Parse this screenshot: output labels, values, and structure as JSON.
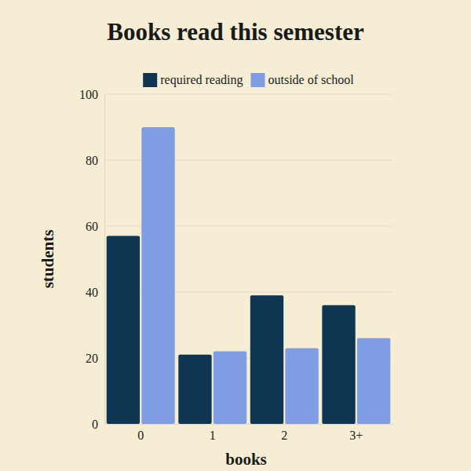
{
  "chart_data": {
    "type": "bar",
    "title": "Books read this semester",
    "x_label": "books",
    "y_label": "students",
    "categories": [
      "0",
      "1",
      "2",
      "3+"
    ],
    "series": [
      {
        "name": "required reading",
        "color": "#0e3652",
        "values": [
          57,
          21,
          39,
          36
        ]
      },
      {
        "name": "outside of school",
        "color": "#7f9de2",
        "values": [
          90,
          22,
          23,
          26
        ]
      }
    ],
    "ylim": [
      0,
      100
    ],
    "yticks": [
      0,
      20,
      40,
      60,
      80,
      100
    ],
    "grid": true,
    "legend": "top"
  }
}
